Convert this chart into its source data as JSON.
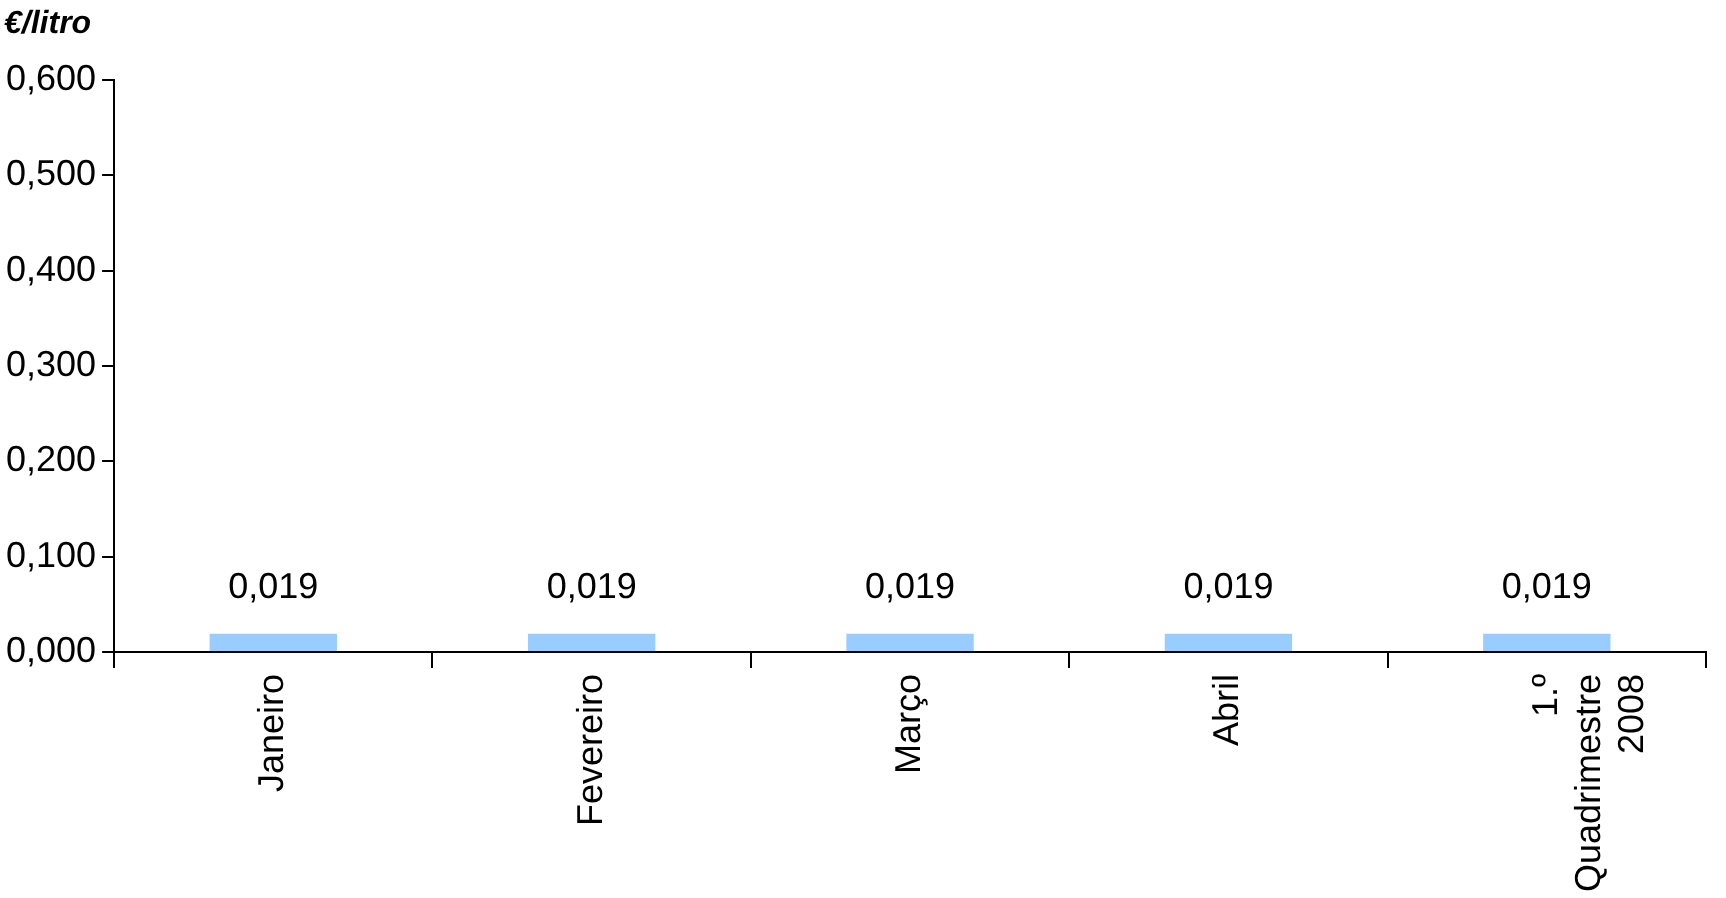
{
  "chart_data": {
    "type": "bar",
    "ylabel": "€/litro",
    "categories": [
      "Janeiro",
      "Fevereiro",
      "Março",
      "Abril",
      "1.º Quadrimestre 2008"
    ],
    "values": [
      0.019,
      0.019,
      0.019,
      0.019,
      0.019
    ],
    "value_labels": [
      "0,019",
      "0,019",
      "0,019",
      "0,019",
      "0,019"
    ],
    "color": "#99ccff",
    "ylim": [
      0,
      0.6
    ],
    "yticks": [
      {
        "value": 0,
        "label": "0,000"
      },
      {
        "value": 0.1,
        "label": "0,100"
      },
      {
        "value": 0.2,
        "label": "0,200"
      },
      {
        "value": 0.3,
        "label": "0,300"
      },
      {
        "value": 0.4,
        "label": "0,400"
      },
      {
        "value": 0.5,
        "label": "0,500"
      },
      {
        "value": 0.6,
        "label": "0,600"
      }
    ],
    "grid": false,
    "legend": false
  }
}
